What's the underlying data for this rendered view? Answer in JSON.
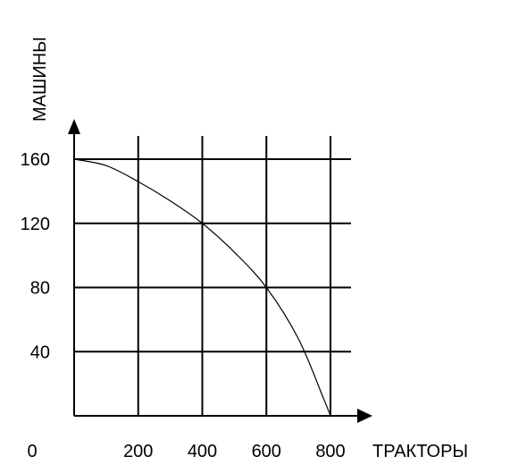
{
  "chart_data": {
    "type": "line",
    "xlabel": "ТРАКТОРЫ",
    "ylabel": "МАШИНЫ",
    "xlim": [
      0,
      800
    ],
    "ylim": [
      0,
      160
    ],
    "x_ticks": [
      0,
      200,
      400,
      600,
      800
    ],
    "y_ticks": [
      40,
      80,
      120,
      160
    ],
    "grid": true,
    "series": [
      {
        "points": [
          [
            0,
            160
          ],
          [
            100,
            156
          ],
          [
            200,
            146
          ],
          [
            300,
            134
          ],
          [
            400,
            120
          ],
          [
            500,
            102
          ],
          [
            600,
            80
          ],
          [
            700,
            48
          ],
          [
            780,
            10
          ],
          [
            800,
            0
          ]
        ]
      }
    ],
    "colors": {
      "line": "#000000",
      "grid": "#000000",
      "background": "#ffffff"
    }
  }
}
